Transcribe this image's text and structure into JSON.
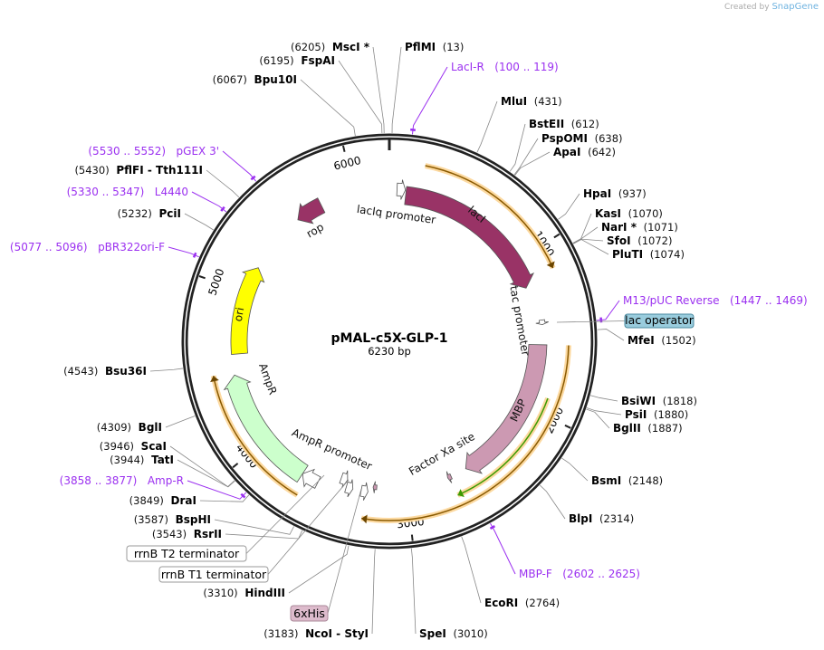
{
  "credit": {
    "prefix": "Created by",
    "brand": "SnapGene"
  },
  "plasmid": {
    "name": "pMAL-c5X-GLP-1",
    "length_label": "6230 bp",
    "length": 6230
  },
  "ticks": [
    {
      "bp": 1000,
      "label": "1000"
    },
    {
      "bp": 2000,
      "label": "2000"
    },
    {
      "bp": 3000,
      "label": "3000"
    },
    {
      "bp": 4000,
      "label": "4000"
    },
    {
      "bp": 5000,
      "label": "5000"
    },
    {
      "bp": 6000,
      "label": "6000"
    }
  ],
  "enzymes": [
    {
      "name": "PflMI",
      "pos": "(13)",
      "bp": 13
    },
    {
      "name": "MluI",
      "pos": "(431)",
      "bp": 431
    },
    {
      "name": "BstEII",
      "pos": "(612)",
      "bp": 612
    },
    {
      "name": "PspOMI",
      "pos": "(638)",
      "bp": 638
    },
    {
      "name": "ApaI",
      "pos": "(642)",
      "bp": 642
    },
    {
      "name": "HpaI",
      "pos": "(937)",
      "bp": 937
    },
    {
      "name": "KasI",
      "pos": "(1070)",
      "bp": 1070
    },
    {
      "name": "NarI *",
      "pos": "(1071)",
      "bp": 1071
    },
    {
      "name": "SfoI",
      "pos": "(1072)",
      "bp": 1072
    },
    {
      "name": "PluTI",
      "pos": "(1074)",
      "bp": 1074
    },
    {
      "name": "MfeI",
      "pos": "(1502)",
      "bp": 1502
    },
    {
      "name": "BsiWI",
      "pos": "(1818)",
      "bp": 1818
    },
    {
      "name": "PsiI",
      "pos": "(1880)",
      "bp": 1880
    },
    {
      "name": "BglII",
      "pos": "(1887)",
      "bp": 1887
    },
    {
      "name": "BsmI",
      "pos": "(2148)",
      "bp": 2148
    },
    {
      "name": "BlpI",
      "pos": "(2314)",
      "bp": 2314
    },
    {
      "name": "EcoRI",
      "pos": "(2764)",
      "bp": 2764
    },
    {
      "name": "SpeI",
      "pos": "(3010)",
      "bp": 3010
    },
    {
      "name": "NcoI  - StyI",
      "pos": "(3183)",
      "bp": 3183
    },
    {
      "name": "HindIII",
      "pos": "(3310)",
      "bp": 3310
    },
    {
      "name": "RsrII",
      "pos": "(3543)",
      "bp": 3543
    },
    {
      "name": "BspHI",
      "pos": "(3587)",
      "bp": 3587
    },
    {
      "name": "DraI",
      "pos": "(3849)",
      "bp": 3849
    },
    {
      "name": "TatI",
      "pos": "(3944)",
      "bp": 3944
    },
    {
      "name": "ScaI",
      "pos": "(3946)",
      "bp": 3946
    },
    {
      "name": "BglI",
      "pos": "(4309)",
      "bp": 4309
    },
    {
      "name": "Bsu36I",
      "pos": "(4543)",
      "bp": 4543
    },
    {
      "name": "PciI",
      "pos": "(5232)",
      "bp": 5232
    },
    {
      "name": "PflFI  - Tth111I",
      "pos": "(5430)",
      "bp": 5430
    },
    {
      "name": "Bpu10I",
      "pos": "(6067)",
      "bp": 6067
    },
    {
      "name": "FspAI",
      "pos": "(6195)",
      "bp": 6195
    },
    {
      "name": "MscI *",
      "pos": "(6205)",
      "bp": 6205
    }
  ],
  "primers": [
    {
      "name": "LacI-R",
      "range": "(100 .. 119)",
      "bp": 110
    },
    {
      "name": "M13/pUC Reverse",
      "range": "(1447 .. 1469)",
      "bp": 1458
    },
    {
      "name": "MBP-F",
      "range": "(2602 .. 2625)",
      "bp": 2613
    },
    {
      "name": "Amp-R",
      "range": "(3858 .. 3877)",
      "bp": 3867
    },
    {
      "name": "pBR322ori-F",
      "range": "(5077 .. 5096)",
      "bp": 5086
    },
    {
      "name": "L4440",
      "range": "(5330 .. 5347)",
      "bp": 5338
    },
    {
      "name": "pGEX 3'",
      "range": "(5530 .. 5552)",
      "bp": 5541
    }
  ],
  "features": [
    {
      "name": "lacIq promoter",
      "start": 50,
      "end": 105,
      "color": "#ffffff",
      "dir": 1
    },
    {
      "name": "lacI",
      "start": 110,
      "end": 1190,
      "color": "#993366",
      "dir": 1
    },
    {
      "name": "rop",
      "start": 5590,
      "end": 5770,
      "color": "#993366",
      "dir": -1
    },
    {
      "name": "ori",
      "start": 4590,
      "end": 5180,
      "color": "#ffff00",
      "dir": 1
    },
    {
      "name": "AmpR",
      "start": 3690,
      "end": 4460,
      "color": "#ccffcc",
      "dir": 1
    },
    {
      "name": "AmpR promoter",
      "start": 3580,
      "end": 3690,
      "color": "#ffffff",
      "dir": 1
    },
    {
      "name": "tac promoter",
      "start": 1420,
      "end": 1450,
      "color": "#ffffff",
      "dir": 1
    },
    {
      "name": "MBP",
      "start": 1580,
      "end": 2580,
      "color": "#cc99b2",
      "dir": 1
    },
    {
      "name": "Factor Xa site",
      "start": 2690,
      "end": 2715,
      "color": "#cc99b2",
      "dir": 1
    }
  ],
  "orf_arrows": [
    {
      "start": 200,
      "end": 1140,
      "color": "#f5b342"
    },
    {
      "start": 1580,
      "end": 3270,
      "color": "#f5b342"
    },
    {
      "start": 3650,
      "end": 4480,
      "color": "#f5b342"
    }
  ],
  "green_arrow": {
    "start": 1900,
    "end": 2700,
    "color": "#3c9a00"
  },
  "boxed": {
    "lac_operator": "lac operator",
    "rrnB_T2": "rrnB T2 terminator",
    "rrnB_T1": "rrnB T1 terminator",
    "his": "6xHis"
  },
  "colors": {
    "primer": "#9b30f0",
    "backbone": "#222222",
    "lac_operator": "#99ccdd",
    "his": "#ddbbcc"
  }
}
